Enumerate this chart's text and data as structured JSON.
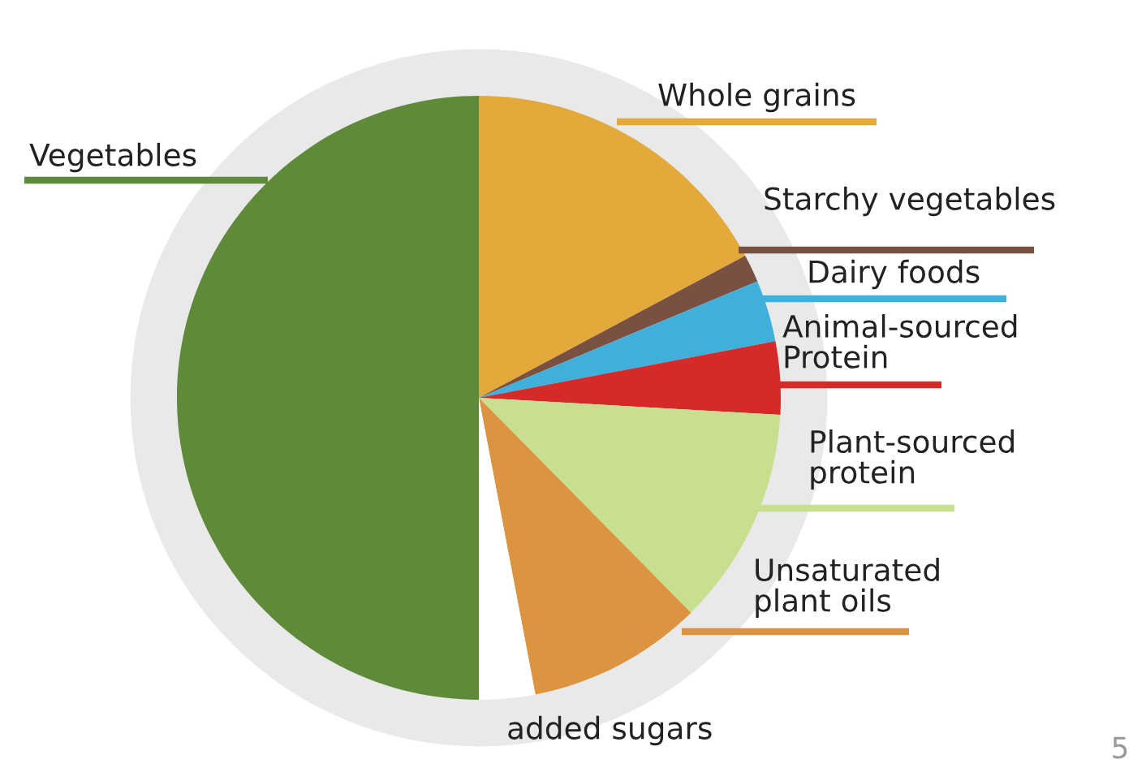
{
  "chart_data": {
    "type": "pie",
    "categories": [
      "Whole grains",
      "Starchy vegetables",
      "Dairy foods",
      "Animal-sourced\nProtein",
      "Plant-sourced\nprotein",
      "Unsaturated\nplant oils",
      "added sugars",
      "Vegetables"
    ],
    "values": [
      17.2,
      1.5,
      3.3,
      3.9,
      11.7,
      9.4,
      3.0,
      50.0
    ],
    "colors": [
      "#e3a93b",
      "#7a5040",
      "#3fb0dc",
      "#d42a2a",
      "#c8df90",
      "#dc9440",
      "#ffffff",
      "#5f8a3a"
    ],
    "annotations": [
      "5"
    ]
  }
}
